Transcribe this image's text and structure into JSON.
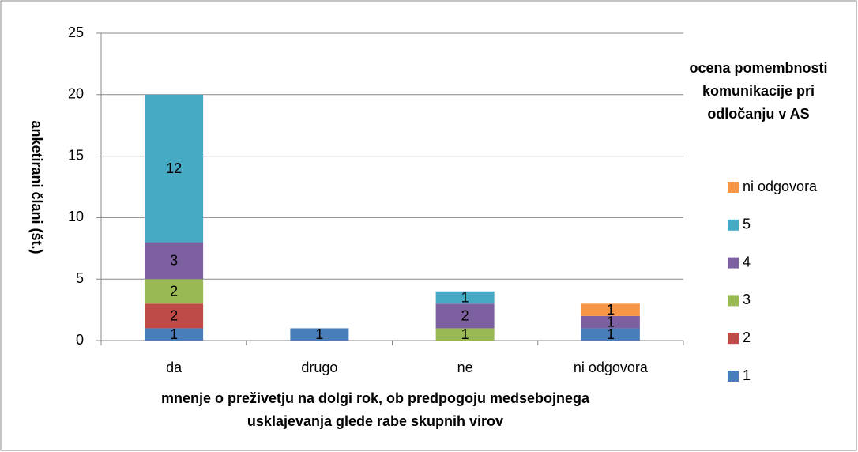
{
  "chart_data": {
    "type": "stacked_bar",
    "y_label": "anketirani člani (št.)",
    "x_label": "mnenje o preživetju na dolgi rok, ob predpogoju medsebojnega usklajevanja glede rabe skupnih virov",
    "legend_title": "ocena pomembnosti komunikacije pri odločanju v AS",
    "categories": [
      "da",
      "drugo",
      "ne",
      "ni odgovora"
    ],
    "series": [
      {
        "name": "1",
        "color": "#4a7ebb",
        "values": [
          1,
          1,
          null,
          1
        ]
      },
      {
        "name": "2",
        "color": "#be4b48",
        "values": [
          2,
          null,
          null,
          null
        ]
      },
      {
        "name": "3",
        "color": "#98b954",
        "values": [
          2,
          null,
          1,
          null
        ]
      },
      {
        "name": "4",
        "color": "#7d60a0",
        "values": [
          3,
          null,
          2,
          1
        ]
      },
      {
        "name": "5",
        "color": "#46aac5",
        "values": [
          12,
          null,
          1,
          null
        ]
      },
      {
        "name": "ni odgovora",
        "color": "#f79646",
        "values": [
          null,
          null,
          null,
          1
        ]
      }
    ],
    "ylim": [
      0,
      25
    ],
    "yticks": [
      0,
      5,
      10,
      15,
      20,
      25
    ],
    "grid": true,
    "legend": "right"
  }
}
